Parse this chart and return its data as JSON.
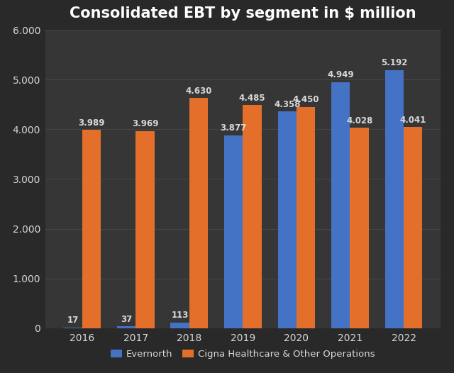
{
  "title": "Consolidated EBT by segment in $ million",
  "years": [
    2016,
    2017,
    2018,
    2019,
    2020,
    2021,
    2022
  ],
  "evernorth": [
    17,
    37,
    113,
    3877,
    4358,
    4949,
    5192
  ],
  "cigna": [
    3989,
    3969,
    4630,
    4485,
    4450,
    4028,
    4041
  ],
  "evernorth_labels": [
    "17",
    "37",
    "113",
    "3.877",
    "4.358",
    "4.949",
    "5.192"
  ],
  "cigna_labels": [
    "3.989",
    "3.969",
    "4.630",
    "4.485",
    "4.450",
    "4.028",
    "4.041"
  ],
  "evernorth_color": "#4472c4",
  "cigna_color": "#e36f2a",
  "background_color": "#292929",
  "axes_background": "#363636",
  "text_color": "#d8d8d8",
  "grid_color": "#4a4a4a",
  "legend_labels": [
    "Evernorth",
    "Cigna Healthcare & Other Operations"
  ],
  "ylim": [
    0,
    6000
  ],
  "yticks": [
    0,
    1000,
    2000,
    3000,
    4000,
    5000,
    6000
  ],
  "ytick_labels": [
    "0",
    "1.000",
    "2.000",
    "3.000",
    "4.000",
    "5.000",
    "6.000"
  ],
  "bar_width": 0.35,
  "title_fontsize": 15,
  "tick_fontsize": 10,
  "label_fontsize": 8.5,
  "legend_fontsize": 9.5
}
